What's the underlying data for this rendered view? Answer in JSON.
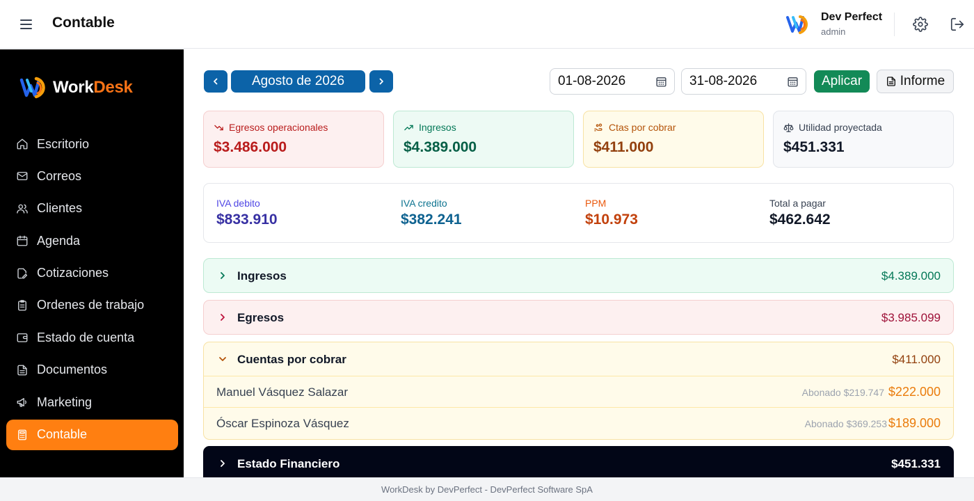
{
  "header": {
    "title": "Contable",
    "user_name": "Dev Perfect",
    "user_role": "admin"
  },
  "brand": {
    "name_part1": "Work",
    "name_part2": "Desk"
  },
  "sidebar": {
    "items": [
      {
        "label": "Escritorio",
        "icon": "home-icon"
      },
      {
        "label": "Correos",
        "icon": "mail-icon"
      },
      {
        "label": "Clientes",
        "icon": "users-icon"
      },
      {
        "label": "Agenda",
        "icon": "calendar-icon"
      },
      {
        "label": "Cotizaciones",
        "icon": "edit-document-icon"
      },
      {
        "label": "Ordenes de trabajo",
        "icon": "clipboard-icon"
      },
      {
        "label": "Estado de cuenta",
        "icon": "wallet-icon"
      },
      {
        "label": "Documentos",
        "icon": "document-icon"
      },
      {
        "label": "Marketing",
        "icon": "megaphone-icon"
      },
      {
        "label": "Contable",
        "icon": "calculator-icon",
        "active": true
      }
    ]
  },
  "toolbar": {
    "month_label": "Agosto de 2026",
    "date_from": "01-08-2026",
    "date_to": "31-08-2026",
    "apply_label": "Aplicar",
    "report_label": "Informe"
  },
  "summary_cards": [
    {
      "label": "Egresos operacionales",
      "value": "$3.486.000",
      "color": "#b91c1c"
    },
    {
      "label": "Ingresos",
      "value": "$4.389.000",
      "color": "#047857"
    },
    {
      "label": "Ctas por cobrar",
      "value": "$411.000",
      "color": "#b45309"
    },
    {
      "label": "Utilidad proyectada",
      "value": "$451.331",
      "color": "#111827"
    }
  ],
  "taxes": [
    {
      "label": "IVA debito",
      "value": "$833.910",
      "color": "#3730a3"
    },
    {
      "label": "IVA credito",
      "value": "$382.241",
      "color": "#0e6290"
    },
    {
      "label": "PPM",
      "value": "$10.973",
      "color": "#c2410c"
    },
    {
      "label": "Total a pagar",
      "value": "$462.642",
      "color": "#111827"
    }
  ],
  "sections": {
    "ingresos": {
      "title": "Ingresos",
      "amount": "$4.389.000"
    },
    "egresos": {
      "title": "Egresos",
      "amount": "$3.985.099"
    },
    "cuentas": {
      "title": "Cuentas por cobrar",
      "amount": "$411.000",
      "rows": [
        {
          "name": "Manuel Vásquez Salazar",
          "paid": "Abonado $219.747",
          "amount": "$222.000"
        },
        {
          "name": "Óscar Espinoza Vásquez",
          "paid": "Abonado $369.253",
          "amount": "$189.000"
        }
      ]
    },
    "estado": {
      "title": "Estado Financiero",
      "amount": "$451.331"
    }
  },
  "footer": {
    "text": "WorkDesk by DevPerfect - DevPerfect Software SpA"
  }
}
